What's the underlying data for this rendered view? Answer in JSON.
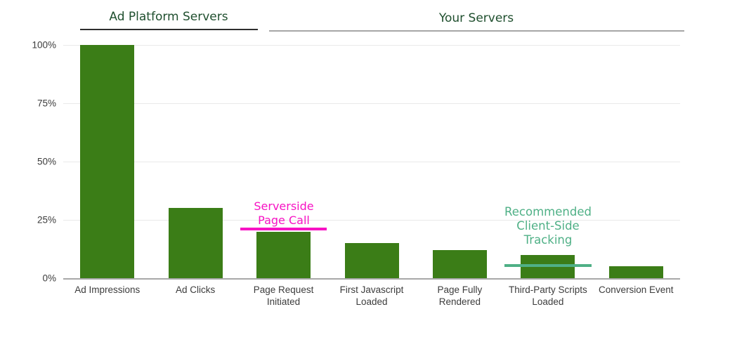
{
  "chart_data": {
    "type": "bar",
    "title": "",
    "categories": [
      "Ad Impressions",
      "Ad Clicks",
      "Page Request Initiated",
      "First Javascript Loaded",
      "Page Fully Rendered",
      "Third-Party Scripts Loaded",
      "Conversion Event"
    ],
    "values": [
      100,
      30,
      20,
      15,
      12,
      10,
      5
    ],
    "unit": "%",
    "ylim": [
      0,
      100
    ],
    "yticks": [
      0,
      25,
      50,
      75,
      100
    ],
    "ytick_labels": [
      "0%",
      "25%",
      "50%",
      "75%",
      "100%"
    ],
    "grid": true,
    "bar_color": "#3b7d17",
    "sections": [
      {
        "label": "Ad Platform Servers",
        "category_span": [
          0,
          1
        ],
        "underline_color": "#2e2e2e"
      },
      {
        "label": "Your Servers",
        "category_span": [
          2,
          6
        ],
        "underline_color": "#a6a6a6"
      }
    ],
    "annotations": [
      {
        "name": "serverside-page-call",
        "lines": [
          "Serverside",
          "Page Call"
        ],
        "color": "#f713c4",
        "line_value": 21,
        "category_index": 2
      },
      {
        "name": "recommended-client-side-tracking",
        "lines": [
          "Recommended",
          "Client-Side",
          "Tracking"
        ],
        "color": "#4fb086",
        "line_value": 5.5,
        "category_index": 5
      }
    ]
  },
  "colors": {
    "bar": "#3b7d17",
    "section_title": "#1f4f2e",
    "axis_label": "#3c3c3c",
    "gridline": "#e9e9e9",
    "axis_line": "#a8a8a8"
  }
}
